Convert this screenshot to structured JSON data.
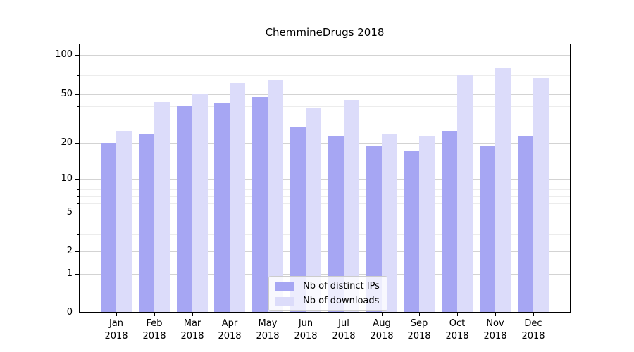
{
  "chart_data": {
    "type": "bar",
    "title": "ChemmineDrugs 2018",
    "categories": [
      "Jan 2018",
      "Feb 2018",
      "Mar 2018",
      "Apr 2018",
      "May 2018",
      "Jun 2018",
      "Jul 2018",
      "Aug 2018",
      "Sep 2018",
      "Oct 2018",
      "Nov 2018",
      "Dec 2018"
    ],
    "series": [
      {
        "name": "Nb of distinct IPs",
        "color": "#a6a6f3",
        "values": [
          20,
          24,
          40,
          42,
          47,
          27,
          23,
          19,
          17,
          25,
          19,
          23
        ]
      },
      {
        "name": "Nb of downloads",
        "color": "#dcdcfa",
        "values": [
          25,
          43,
          50,
          61,
          65,
          38,
          45,
          24,
          23,
          70,
          80,
          66
        ]
      }
    ],
    "y_scale": "symlog (log above 1, linear 0-1)",
    "y_ticks": [
      0,
      1,
      2,
      5,
      10,
      20,
      50,
      100
    ],
    "y_minor_ticks": [
      3,
      4,
      6,
      7,
      8,
      9,
      30,
      40,
      60,
      70,
      80,
      90
    ],
    "ylim": [
      0,
      115
    ],
    "xlabel": "",
    "ylabel": "",
    "grid": true,
    "legend_position": "lower center",
    "colors": {
      "grid_major": "#d3d3d3",
      "grid_minor": "#ececec",
      "axis": "#000000",
      "background": "#ffffff"
    }
  }
}
